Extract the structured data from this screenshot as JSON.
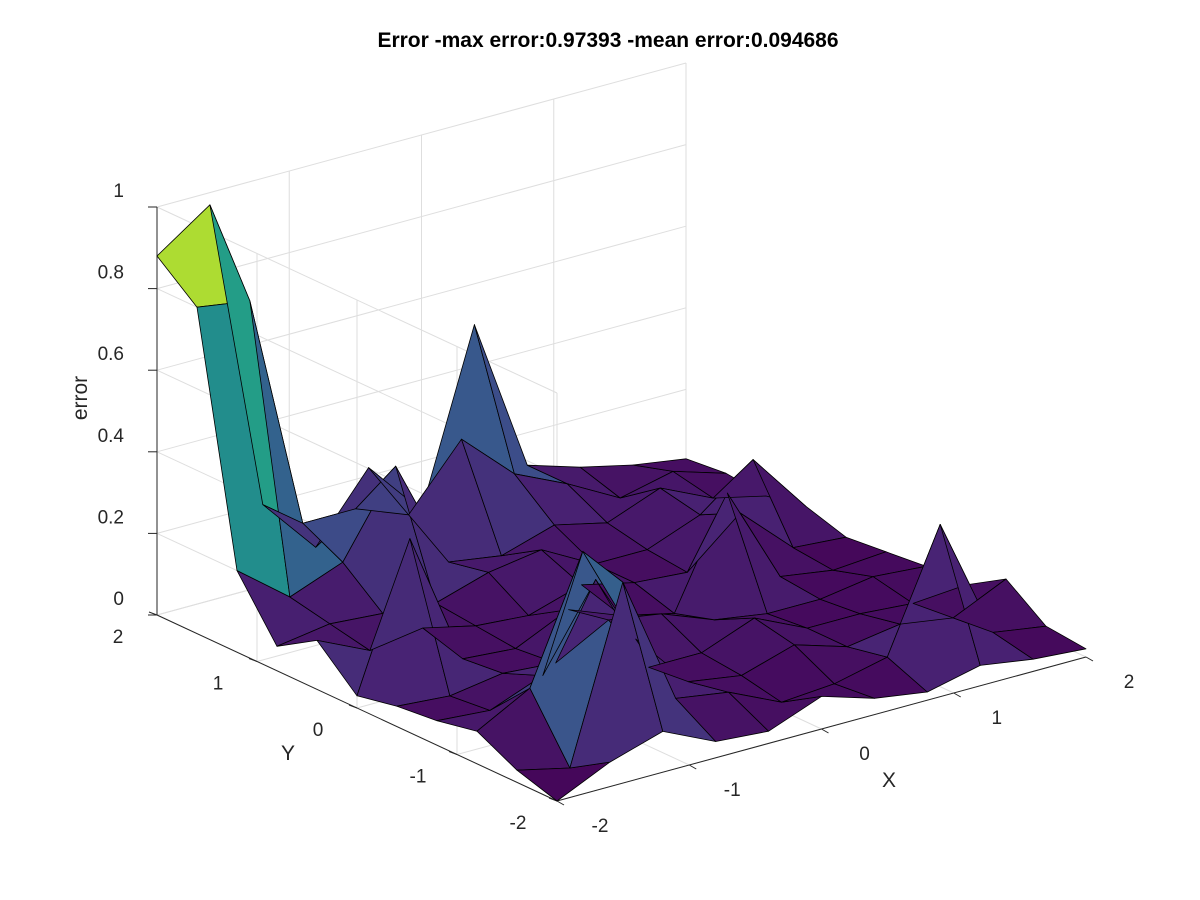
{
  "figure": {
    "title": "Error -max error:0.97393 -mean error:0.094686"
  },
  "chart_data": {
    "type": "surface",
    "title": "Error -max error:0.97393 -mean error:0.094686",
    "xlabel": "X",
    "ylabel": "Y",
    "zlabel": "error",
    "xlim": [
      -2,
      2
    ],
    "ylim": [
      -2,
      2
    ],
    "zlim": [
      0,
      1
    ],
    "xticks": [
      -2,
      -1,
      0,
      1,
      2
    ],
    "yticks": [
      -2,
      -1,
      0,
      1,
      2
    ],
    "zticks": [
      0,
      0.2,
      0.4,
      0.6,
      0.8,
      1
    ],
    "xtick_labels": [
      "-2",
      "-1",
      "0",
      "1",
      "2"
    ],
    "ytick_labels": [
      "-2",
      "-1",
      "0",
      "1",
      "2"
    ],
    "ztick_labels": [
      "0",
      "0.2",
      "0.4",
      "0.6",
      "0.8",
      "1"
    ],
    "grid": true,
    "colormap": "viridis",
    "x": [
      -2.0,
      -1.6,
      -1.2,
      -0.8,
      -0.4,
      0.0,
      0.4,
      0.8,
      1.2,
      1.6,
      2.0
    ],
    "y": [
      -2.0,
      -1.6,
      -1.2,
      -0.8,
      -0.4,
      0.0,
      0.4,
      0.8,
      1.2,
      1.6,
      2.0
    ],
    "z": [
      [
        0.0,
        0.06,
        0.1,
        0.04,
        0.03,
        0.08,
        0.04,
        0.02,
        0.05,
        0.03,
        0.02
      ],
      [
        0.03,
        0.0,
        0.42,
        0.1,
        0.08,
        0.02,
        0.03,
        0.06,
        0.35,
        0.05,
        0.03
      ],
      [
        0.08,
        0.15,
        0.45,
        0.2,
        0.06,
        0.04,
        0.08,
        0.04,
        0.06,
        0.04,
        0.1
      ],
      [
        0.06,
        0.05,
        0.1,
        0.3,
        0.05,
        0.05,
        0.1,
        0.04,
        0.04,
        0.03,
        0.04
      ],
      [
        0.05,
        0.04,
        0.06,
        0.05,
        0.12,
        0.1,
        0.05,
        0.03,
        0.03,
        0.05,
        0.04
      ],
      [
        0.03,
        0.38,
        0.05,
        0.04,
        0.1,
        0.05,
        0.02,
        0.28,
        0.04,
        0.02,
        0.03
      ],
      [
        0.12,
        0.06,
        0.08,
        0.05,
        0.04,
        0.08,
        0.05,
        0.04,
        0.15,
        0.03,
        0.02
      ],
      [
        0.06,
        0.08,
        0.07,
        0.06,
        0.1,
        0.12,
        0.05,
        0.05,
        0.1,
        0.2,
        0.05
      ],
      [
        0.2,
        0.1,
        0.15,
        0.35,
        0.08,
        0.06,
        0.1,
        0.07,
        0.12,
        0.06,
        0.03
      ],
      [
        0.8,
        0.78,
        0.2,
        0.2,
        0.15,
        0.3,
        0.18,
        0.12,
        0.05,
        0.08,
        0.04
      ],
      [
        0.88,
        0.97,
        0.2,
        0.06,
        0.22,
        0.08,
        0.5,
        0.12,
        0.08,
        0.05,
        0.03
      ]
    ]
  }
}
